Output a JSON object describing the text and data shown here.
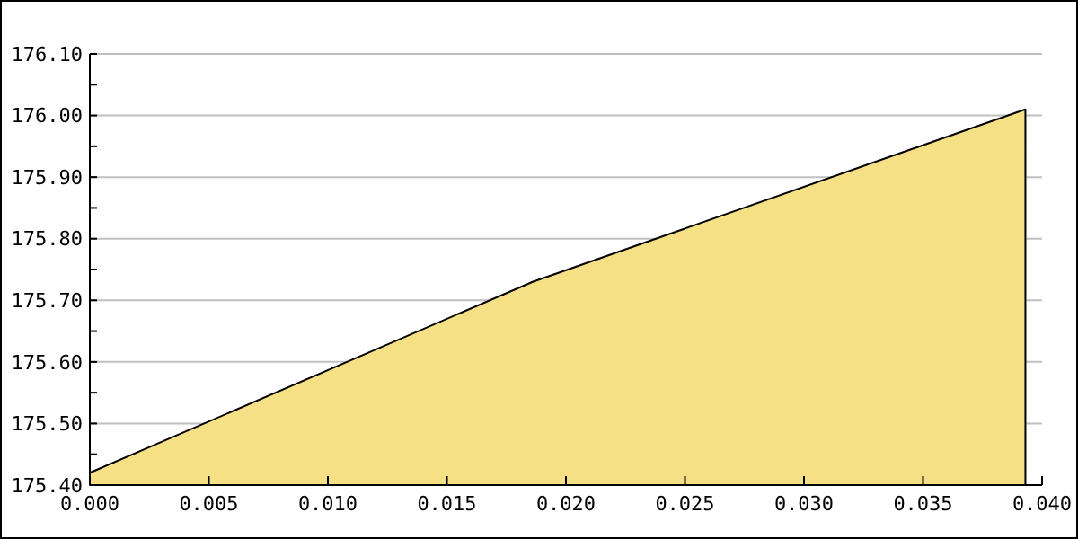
{
  "chart_data": {
    "type": "area",
    "x": [
      0,
      0.0186,
      0.0393
    ],
    "series": [
      {
        "color": "#f5e085",
        "values": [
          175.42,
          175.73,
          176.01
        ]
      }
    ],
    "xlim": [
      0,
      0.04
    ],
    "xticks": [
      {
        "value": 0,
        "label": "0.000"
      },
      {
        "value": 0.005,
        "label": "0.005"
      },
      {
        "value": 0.01,
        "label": "0.010"
      },
      {
        "value": 0.015,
        "label": "0.015"
      },
      {
        "value": 0.02,
        "label": "0.020"
      },
      {
        "value": 0.025,
        "label": "0.025"
      },
      {
        "value": 0.03,
        "label": "0.030"
      },
      {
        "value": 0.035,
        "label": "0.035"
      },
      {
        "value": 0.04,
        "label": "0.040"
      }
    ],
    "ylim": [
      175.4,
      176.1
    ],
    "yticks": [
      {
        "value": 175.4,
        "label": "175.40"
      },
      {
        "value": 175.45,
        "label": null
      },
      {
        "value": 175.5,
        "label": "175.50"
      },
      {
        "value": 175.55,
        "label": null
      },
      {
        "value": 175.6,
        "label": "175.60"
      },
      {
        "value": 175.65,
        "label": null
      },
      {
        "value": 175.7,
        "label": "175.70"
      },
      {
        "value": 175.75,
        "label": null
      },
      {
        "value": 175.8,
        "label": "175.80"
      },
      {
        "value": 175.85,
        "label": null
      },
      {
        "value": 175.9,
        "label": "175.90"
      },
      {
        "value": 175.95,
        "label": null
      },
      {
        "value": 176,
        "label": "176.00"
      },
      {
        "value": 176.05,
        "label": null
      },
      {
        "value": 176.1,
        "label": "176.10"
      }
    ],
    "grid": "y"
  }
}
